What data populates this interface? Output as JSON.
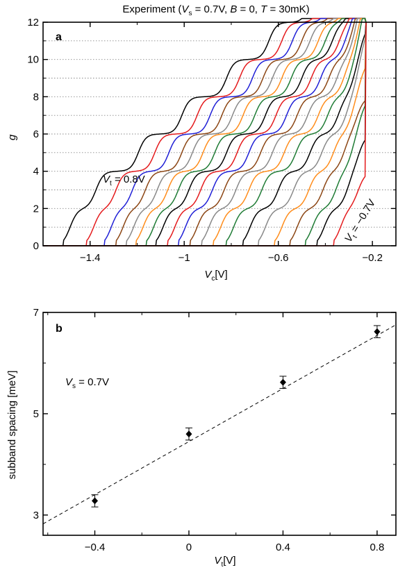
{
  "chart_data": [
    {
      "type": "line",
      "panel": "a",
      "title_parts": [
        "Experiment (",
        "V",
        "s",
        " = 0.7V, ",
        "B",
        " = 0, ",
        "T",
        " = 30mK)"
      ],
      "xlabel_parts": [
        "V",
        "c",
        "[V]"
      ],
      "ylabel": "g",
      "xlim": [
        -1.6,
        -0.1
      ],
      "ylim": [
        0,
        12
      ],
      "xticks": [
        -1.4,
        -1.0,
        -0.6,
        -0.2
      ],
      "xtick_labels": [
        "−1.4",
        "−1",
        "−0.6",
        "−0.2"
      ],
      "yticks": [
        0,
        2,
        4,
        6,
        8,
        10,
        12
      ],
      "ytick_labels": [
        "0",
        "2",
        "4",
        "6",
        "8",
        "10",
        "12"
      ],
      "grid": "dotted horizontal lines at g = 1, 2, ..., 11",
      "annotation_top": {
        "parts": [
          "V",
          "t",
          " = 0.8V"
        ],
        "color": "#000000"
      },
      "annotation_bottom": {
        "parts": [
          "V",
          "t",
          " = −0.7V"
        ],
        "color": "#e41a1c"
      },
      "curve_colors": [
        "#000000",
        "#e41a1c",
        "#1f1fd6",
        "#8b4513",
        "#888888",
        "#ff8c1a",
        "#1e7b34"
      ],
      "series": [
        {
          "Vt": 0.8,
          "color": "#000000",
          "x0": -1.485,
          "steps": [
            -1.485,
            -1.375,
            -1.195,
            -1.01,
            -0.82,
            -0.64,
            -0.47,
            -0.345,
            -0.275,
            -0.245
          ],
          "end_rise": -0.232
        },
        {
          "Vt": 0.7,
          "color": "#e41a1c",
          "x0": -1.385,
          "steps": [
            -1.385,
            -1.29,
            -1.125,
            -0.945,
            -0.765,
            -0.585,
            -0.425,
            -0.315,
            -0.262,
            -0.24
          ],
          "end_rise": -0.232
        },
        {
          "Vt": 0.6,
          "color": "#1f1fd6",
          "x0": -1.31,
          "steps": [
            -1.31,
            -1.22,
            -1.065,
            -0.89,
            -0.71,
            -0.54,
            -0.39,
            -0.295,
            -0.255,
            -0.238
          ],
          "end_rise": -0.232
        },
        {
          "Vt": 0.5,
          "color": "#8b4513",
          "x0": -1.26,
          "steps": [
            -1.26,
            -1.165,
            -1.01,
            -0.84,
            -0.665,
            -0.5,
            -0.36,
            -0.28,
            -0.25,
            -0.236
          ],
          "end_rise": -0.232
        },
        {
          "Vt": 0.4,
          "color": "#888888",
          "x0": -1.215,
          "steps": [
            -1.215,
            -1.115,
            -0.965,
            -0.795,
            -0.625,
            -0.465,
            -0.335,
            -0.27,
            -0.246,
            -0.235
          ],
          "end_rise": -0.232
        },
        {
          "Vt": 0.3,
          "color": "#ff8c1a",
          "x0": -1.175,
          "steps": [
            -1.175,
            -1.07,
            -0.92,
            -0.75,
            -0.585,
            -0.43,
            -0.315,
            -0.262,
            -0.243,
            -0.234
          ],
          "end_rise": -0.232
        },
        {
          "Vt": 0.2,
          "color": "#1e7b34",
          "x0": -1.13,
          "steps": [
            -1.13,
            -1.025,
            -0.87,
            -0.7,
            -0.545,
            -0.4,
            -0.3,
            -0.256,
            -0.24,
            -0.233
          ],
          "end_rise": -0.232
        },
        {
          "Vt": 0.1,
          "color": "#000000",
          "x0": -1.09,
          "steps": [
            -1.09,
            -0.98,
            -0.82,
            -0.655,
            -0.5,
            -0.37,
            -0.285,
            -0.25,
            -0.238,
            -0.232
          ],
          "end_rise": -0.231
        },
        {
          "Vt": 0.0,
          "color": "#e41a1c",
          "x0": -1.04,
          "steps": [
            -1.04,
            -0.93,
            -0.775,
            -0.61,
            -0.46,
            -0.34,
            -0.272,
            -0.246,
            -0.236
          ],
          "end_rise": -0.231
        },
        {
          "Vt": -0.1,
          "color": "#1f1fd6",
          "x0": -0.995,
          "steps": [
            -0.995,
            -0.88,
            -0.725,
            -0.565,
            -0.42,
            -0.315,
            -0.262,
            -0.242,
            -0.235
          ],
          "end_rise": -0.231
        },
        {
          "Vt": -0.2,
          "color": "#8b4513",
          "x0": -0.945,
          "steps": [
            -0.945,
            -0.83,
            -0.675,
            -0.52,
            -0.385,
            -0.295,
            -0.255,
            -0.239
          ],
          "end_rise": -0.231
        },
        {
          "Vt": -0.3,
          "color": "#888888",
          "x0": -0.895,
          "steps": [
            -0.895,
            -0.78,
            -0.625,
            -0.475,
            -0.35,
            -0.28,
            -0.249,
            -0.237
          ],
          "end_rise": -0.231
        },
        {
          "Vt": -0.4,
          "color": "#ff8c1a",
          "x0": -0.845,
          "steps": [
            -0.845,
            -0.725,
            -0.575,
            -0.43,
            -0.32,
            -0.267,
            -0.244
          ],
          "end_rise": -0.231
        },
        {
          "Vt": -0.5,
          "color": "#1e7b34",
          "x0": -0.79,
          "steps": [
            -0.79,
            -0.67,
            -0.525,
            -0.39,
            -0.295,
            -0.257,
            -0.24
          ],
          "end_rise": -0.231
        },
        {
          "Vt": -0.55,
          "color": "#000000",
          "x0": -0.72,
          "steps": [
            -0.72,
            -0.6,
            -0.465,
            -0.345,
            -0.275,
            -0.248
          ],
          "end_rise": -0.231
        },
        {
          "Vt": -0.6,
          "color": "#888888",
          "x0": -0.655,
          "steps": [
            -0.655,
            -0.535,
            -0.415,
            -0.31,
            -0.262,
            -0.243
          ],
          "end_rise": -0.231
        },
        {
          "Vt": -0.62,
          "color": "#ff8c1a",
          "x0": -0.585,
          "steps": [
            -0.585,
            -0.47,
            -0.365,
            -0.285,
            -0.252
          ],
          "end_rise": -0.231
        },
        {
          "Vt": -0.64,
          "color": "#8b4513",
          "x0": -0.52,
          "steps": [
            -0.52,
            -0.41,
            -0.32,
            -0.265
          ],
          "end_rise": -0.231
        },
        {
          "Vt": -0.66,
          "color": "#1e7b34",
          "x0": -0.455,
          "steps": [
            -0.455,
            -0.355,
            -0.285,
            -0.252
          ],
          "end_rise": -0.231
        },
        {
          "Vt": -0.68,
          "color": "#000000",
          "x0": -0.405,
          "steps": [
            -0.405,
            -0.305,
            -0.258
          ],
          "end_rise": -0.231
        },
        {
          "Vt": -0.7,
          "color": "#e41a1c",
          "x0": -0.335,
          "steps": [
            -0.335,
            -0.26
          ],
          "end_rise": -0.231
        }
      ]
    },
    {
      "type": "scatter",
      "panel": "b",
      "xlabel_parts": [
        "V",
        "t",
        "[V]"
      ],
      "ylabel": "subband spacing [meV]",
      "annotation_parts": [
        "V",
        "s",
        " = 0.7V"
      ],
      "xlim": [
        -0.62,
        0.88
      ],
      "ylim": [
        2.6,
        7.0
      ],
      "xticks": [
        -0.4,
        0,
        0.4,
        0.8
      ],
      "xtick_labels": [
        "−0.4",
        "0",
        "0.4",
        "0.8"
      ],
      "yticks": [
        3,
        5,
        7
      ],
      "ytick_labels": [
        "3",
        "5",
        "7"
      ],
      "points": [
        {
          "x": -0.4,
          "y": 3.28,
          "err": 0.12
        },
        {
          "x": 0.0,
          "y": 4.6,
          "err": 0.12
        },
        {
          "x": 0.4,
          "y": 5.62,
          "err": 0.12
        },
        {
          "x": 0.8,
          "y": 6.62,
          "err": 0.12
        }
      ],
      "fit_line": {
        "slope": 2.62,
        "intercept": 4.45,
        "style": "dashed"
      }
    }
  ]
}
